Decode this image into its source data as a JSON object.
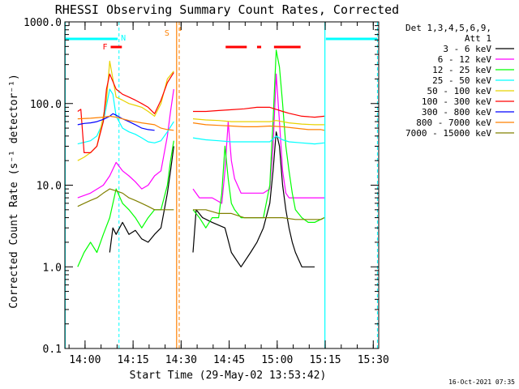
{
  "chart_data": {
    "type": "line",
    "title": "RHESSI Observing Summary Count Rates, Corrected",
    "xlabel": "Start Time (29-May-02 13:53:42)",
    "ylabel": "Corrected Count Rate (s⁻¹ detector⁻¹)",
    "yscale": "log",
    "ylim": [
      0.1,
      1000.0
    ],
    "xlim_minutes_after_start": [
      0,
      98
    ],
    "x_tick_labels": [
      "14:00",
      "14:15",
      "14:30",
      "14:45",
      "15:00",
      "15:15",
      "15:30"
    ],
    "x_tick_minutes_after_start": [
      6.3,
      21.3,
      36.3,
      51.3,
      66.3,
      81.3,
      96.3
    ],
    "y_tick_labels": [
      "0.1",
      "1.0",
      "10.0",
      "100.0",
      "1000.0"
    ],
    "y_tick_values": [
      0.1,
      1,
      10,
      100,
      1000
    ],
    "grid": false,
    "legend_header": [
      "Det 1,3,4,5,6,9,",
      "Att 1"
    ],
    "legend_placement": "right",
    "series": [
      {
        "name": "3 - 6 keV",
        "color": "#000000",
        "x": [
          0,
          13,
          14,
          15,
          16,
          18,
          20,
          22,
          24,
          26,
          28,
          30,
          32,
          33,
          34,
          35,
          40,
          41,
          43,
          46,
          50,
          52,
          55,
          58,
          60,
          62,
          64,
          65,
          66,
          67,
          68,
          69,
          70,
          71,
          72,
          74,
          76,
          78,
          80
        ],
        "y": [
          null,
          null,
          1.5,
          3,
          2.5,
          3.5,
          2.5,
          2.8,
          2.2,
          2,
          2.5,
          3,
          8,
          15,
          30,
          null,
          1.5,
          5,
          4,
          3.5,
          3,
          1.5,
          1,
          1.5,
          2,
          3,
          6,
          15,
          45,
          30,
          10,
          5,
          3,
          2,
          1.5,
          1,
          1,
          1,
          null
        ]
      },
      {
        "name": "6 - 12 keV",
        "color": "#ff00ff",
        "x": [
          0,
          4,
          8,
          12,
          14,
          16,
          18,
          20,
          22,
          24,
          26,
          28,
          30,
          32,
          33,
          34,
          35,
          40,
          42,
          46,
          49,
          50,
          51,
          52,
          53,
          55,
          57,
          60,
          62,
          64,
          65,
          66,
          67,
          68,
          69,
          70,
          71,
          72,
          74,
          76,
          78,
          81
        ],
        "y": [
          null,
          7,
          8,
          10,
          13,
          19,
          15,
          13,
          11,
          9,
          10,
          13,
          15,
          40,
          80,
          150,
          null,
          9,
          7,
          7,
          6,
          15,
          60,
          20,
          12,
          8,
          8,
          8,
          8,
          9,
          30,
          230,
          60,
          15,
          8,
          7,
          7,
          7,
          7,
          7,
          7,
          7
        ]
      },
      {
        "name": "12 - 25 keV",
        "color": "#00ff00",
        "x": [
          0,
          4,
          6,
          8,
          10,
          12,
          14,
          16,
          18,
          20,
          22,
          24,
          26,
          28,
          30,
          32,
          33,
          34,
          35,
          40,
          42,
          44,
          46,
          48,
          49,
          50,
          51,
          52,
          53,
          55,
          57,
          60,
          62,
          64,
          65,
          66,
          67,
          68,
          69,
          70,
          71,
          72,
          74,
          76,
          78,
          81
        ],
        "y": [
          null,
          1,
          1.5,
          2,
          1.5,
          2.5,
          4,
          9,
          6,
          5,
          4,
          3,
          4,
          5,
          5,
          10,
          20,
          35,
          null,
          5,
          4,
          3,
          4,
          4,
          8,
          30,
          12,
          6,
          5,
          4,
          4,
          4,
          4,
          10,
          60,
          450,
          280,
          100,
          30,
          15,
          8,
          5,
          4,
          3.5,
          3.5,
          4
        ]
      },
      {
        "name": "25 - 50 keV",
        "color": "#00ffff",
        "x": [
          0,
          4,
          8,
          10,
          12,
          14,
          15,
          16,
          18,
          20,
          22,
          24,
          26,
          28,
          30,
          32,
          34,
          35,
          40,
          44,
          48,
          52,
          56,
          60,
          64,
          66,
          68,
          70,
          74,
          78,
          81
        ],
        "y": [
          null,
          32,
          35,
          40,
          60,
          150,
          130,
          70,
          50,
          45,
          42,
          38,
          34,
          33,
          35,
          45,
          60,
          null,
          38,
          36,
          35,
          34,
          34,
          34,
          34,
          40,
          36,
          34,
          33,
          32,
          33
        ]
      },
      {
        "name": "50 - 100 keV",
        "color": "#e8d200",
        "x": [
          0,
          4,
          6,
          8,
          10,
          12,
          13,
          14,
          16,
          18,
          20,
          22,
          24,
          26,
          28,
          30,
          32,
          34,
          35,
          40,
          44,
          48,
          52,
          56,
          60,
          64,
          66,
          68,
          70,
          74,
          78,
          81
        ],
        "y": [
          null,
          20,
          22,
          25,
          30,
          70,
          110,
          330,
          120,
          110,
          100,
          95,
          90,
          80,
          70,
          100,
          200,
          250,
          null,
          65,
          63,
          62,
          60,
          60,
          60,
          60,
          62,
          60,
          58,
          56,
          55,
          55
        ]
      },
      {
        "name": "100 - 300 keV",
        "color": "#ff0000",
        "x": [
          0,
          4,
          5,
          6,
          8,
          10,
          12,
          13,
          14,
          16,
          18,
          20,
          22,
          24,
          26,
          28,
          30,
          32,
          34,
          35,
          40,
          44,
          48,
          52,
          56,
          60,
          64,
          66,
          68,
          70,
          74,
          78,
          81
        ],
        "y": [
          null,
          80,
          85,
          25,
          25,
          30,
          60,
          150,
          230,
          150,
          130,
          120,
          110,
          100,
          90,
          75,
          110,
          180,
          240,
          null,
          80,
          80,
          82,
          84,
          86,
          90,
          90,
          85,
          80,
          76,
          70,
          68,
          70
        ]
      },
      {
        "name": "300 - 800 keV",
        "color": "#0000ff",
        "x": [
          0,
          4,
          6,
          8,
          10,
          12,
          14,
          15,
          16,
          18,
          20,
          22,
          24,
          26,
          28,
          30
        ],
        "y": [
          null,
          55,
          57,
          58,
          60,
          64,
          70,
          75,
          72,
          65,
          60,
          55,
          50,
          48,
          47,
          null
        ]
      },
      {
        "name": "800 - 7000 keV",
        "color": "#ff8000",
        "x": [
          0,
          4,
          8,
          12,
          14,
          16,
          20,
          24,
          28,
          30,
          32,
          34,
          35,
          40,
          44,
          48,
          52,
          56,
          60,
          64,
          68,
          72,
          76,
          80,
          81
        ],
        "y": [
          null,
          65,
          66,
          68,
          70,
          68,
          62,
          58,
          55,
          50,
          48,
          47,
          null,
          58,
          55,
          54,
          53,
          52,
          52,
          53,
          52,
          50,
          48,
          48,
          47
        ]
      },
      {
        "name": "7000 - 15000 keV",
        "color": "#808000",
        "x": [
          0,
          4,
          6,
          8,
          10,
          12,
          14,
          16,
          18,
          20,
          22,
          24,
          26,
          28,
          30,
          32,
          34,
          35,
          40,
          44,
          48,
          52,
          56,
          60,
          64,
          68,
          72,
          76,
          80,
          81
        ],
        "y": [
          null,
          5.5,
          6,
          6.5,
          7,
          8,
          9,
          8.5,
          8,
          7,
          6.5,
          6,
          5.5,
          5,
          5,
          5,
          5,
          null,
          5,
          5,
          4.5,
          4.5,
          4,
          4,
          4,
          4,
          3.8,
          3.8,
          3.8,
          4
        ]
      }
    ],
    "flags": [
      {
        "label": "N",
        "color": "#00ffff",
        "segments": [
          [
            0.2,
            16.5
          ],
          [
            81.5,
            97.6
          ]
        ]
      },
      {
        "label": "F",
        "color": "#ff0000",
        "segments": [
          [
            14.3,
            17.8
          ],
          [
            50.2,
            56.8
          ],
          [
            60.0,
            61.3
          ],
          [
            65.3,
            73.6
          ]
        ]
      }
    ],
    "vlines": [
      {
        "label": "N",
        "color": "#00ffff",
        "cyan_solid_minutes": [
          0.1,
          81.2
        ],
        "cyan_dashed_minutes": [
          16.9,
          97.6
        ]
      },
      {
        "label": "S",
        "color": "#ff8000",
        "orange_solid_minutes": [
          34.9
        ],
        "orange_dashed_minutes": [
          35.7
        ]
      }
    ],
    "footer_timestamp": "16-Oct-2021 07:35"
  }
}
